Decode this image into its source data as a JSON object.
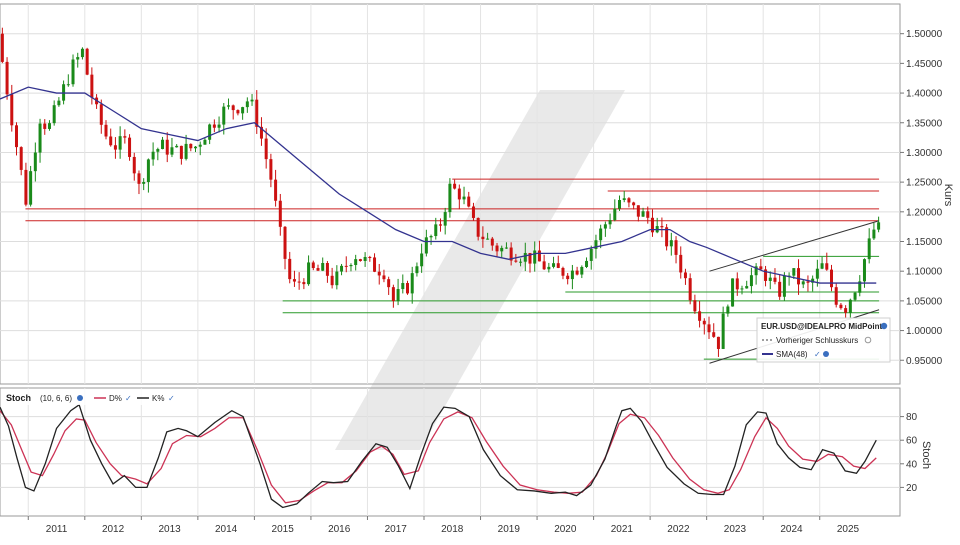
{
  "chart_data": [
    {
      "type": "candlestick",
      "instrument": "EUR.USD@IDEALPRO MidPoint",
      "ylabel": "Kurs",
      "ylim": [
        0.91,
        1.55
      ],
      "y_ticks": [
        "1.50000",
        "1.45000",
        "1.40000",
        "1.35000",
        "1.30000",
        "1.25000",
        "1.20000",
        "1.15000",
        "1.10000",
        "1.05000",
        "1.00000",
        "0.95000"
      ],
      "x_ticks": [
        "2011",
        "2012",
        "2013",
        "2014",
        "2015",
        "2016",
        "2017",
        "2018",
        "2019",
        "2020",
        "2021",
        "2022",
        "2023",
        "2024",
        "2025"
      ],
      "legend": {
        "title": "EUR.USD@IDEALPRO MidPoint",
        "prev_close": "Vorheriger Schlusskurs",
        "sma": "SMA(48)"
      },
      "colors": {
        "up": "#1a8a1a",
        "down": "#cc1111",
        "sma": "#33338f"
      },
      "price_path": [
        [
          2010.0,
          1.5
        ],
        [
          2010.3,
          1.33
        ],
        [
          2010.5,
          1.22
        ],
        [
          2010.75,
          1.36
        ],
        [
          2010.9,
          1.34
        ],
        [
          2011.3,
          1.44
        ],
        [
          2011.5,
          1.47
        ],
        [
          2011.7,
          1.38
        ],
        [
          2011.9,
          1.33
        ],
        [
          2012.1,
          1.31
        ],
        [
          2012.3,
          1.32
        ],
        [
          2012.5,
          1.24
        ],
        [
          2012.7,
          1.3
        ],
        [
          2012.9,
          1.31
        ],
        [
          2013.2,
          1.3
        ],
        [
          2013.5,
          1.31
        ],
        [
          2013.8,
          1.35
        ],
        [
          2014.0,
          1.37
        ],
        [
          2014.3,
          1.38
        ],
        [
          2014.45,
          1.39
        ],
        [
          2014.6,
          1.35
        ],
        [
          2014.85,
          1.25
        ],
        [
          2015.0,
          1.16
        ],
        [
          2015.2,
          1.07
        ],
        [
          2015.5,
          1.1
        ],
        [
          2015.8,
          1.1
        ],
        [
          2015.95,
          1.08
        ],
        [
          2016.3,
          1.13
        ],
        [
          2016.6,
          1.11
        ],
        [
          2016.85,
          1.1
        ],
        [
          2017.0,
          1.05
        ],
        [
          2017.3,
          1.08
        ],
        [
          2017.5,
          1.14
        ],
        [
          2017.8,
          1.17
        ],
        [
          2018.0,
          1.24
        ],
        [
          2018.2,
          1.23
        ],
        [
          2018.45,
          1.17
        ],
        [
          2018.8,
          1.14
        ],
        [
          2019.2,
          1.13
        ],
        [
          2019.5,
          1.12
        ],
        [
          2019.8,
          1.1
        ],
        [
          2020.1,
          1.1
        ],
        [
          2020.2,
          1.1
        ],
        [
          2020.5,
          1.14
        ],
        [
          2020.75,
          1.18
        ],
        [
          2021.0,
          1.22
        ],
        [
          2021.3,
          1.2
        ],
        [
          2021.5,
          1.19
        ],
        [
          2021.75,
          1.16
        ],
        [
          2022.0,
          1.13
        ],
        [
          2022.3,
          1.05
        ],
        [
          2022.55,
          1.01
        ],
        [
          2022.75,
          0.98
        ],
        [
          2022.95,
          1.07
        ],
        [
          2023.3,
          1.09
        ],
        [
          2023.55,
          1.1
        ],
        [
          2023.8,
          1.06
        ],
        [
          2024.0,
          1.1
        ],
        [
          2024.3,
          1.07
        ],
        [
          2024.6,
          1.11
        ],
        [
          2024.85,
          1.05
        ],
        [
          2025.0,
          1.04
        ],
        [
          2025.2,
          1.08
        ],
        [
          2025.4,
          1.14
        ],
        [
          2025.5,
          1.17
        ]
      ],
      "sma_48": [
        [
          2010.0,
          1.39
        ],
        [
          2010.5,
          1.41
        ],
        [
          2011.0,
          1.4
        ],
        [
          2011.5,
          1.4
        ],
        [
          2012.0,
          1.37
        ],
        [
          2012.5,
          1.34
        ],
        [
          2013.0,
          1.33
        ],
        [
          2013.5,
          1.32
        ],
        [
          2014.0,
          1.34
        ],
        [
          2014.5,
          1.35
        ],
        [
          2015.0,
          1.31
        ],
        [
          2015.5,
          1.27
        ],
        [
          2016.0,
          1.23
        ],
        [
          2016.5,
          1.2
        ],
        [
          2017.0,
          1.17
        ],
        [
          2017.5,
          1.15
        ],
        [
          2018.0,
          1.15
        ],
        [
          2018.5,
          1.13
        ],
        [
          2019.0,
          1.12
        ],
        [
          2019.5,
          1.13
        ],
        [
          2020.0,
          1.13
        ],
        [
          2020.5,
          1.14
        ],
        [
          2021.0,
          1.15
        ],
        [
          2021.5,
          1.17
        ],
        [
          2021.85,
          1.17
        ],
        [
          2022.2,
          1.15
        ],
        [
          2022.5,
          1.14
        ],
        [
          2023.0,
          1.12
        ],
        [
          2023.5,
          1.1
        ],
        [
          2024.0,
          1.09
        ],
        [
          2024.5,
          1.08
        ],
        [
          2025.0,
          1.08
        ],
        [
          2025.5,
          1.08
        ]
      ],
      "resistance_levels": [
        {
          "from": 2018.0,
          "to": 2025.55,
          "value": 1.255
        },
        {
          "from": 2020.75,
          "to": 2025.55,
          "value": 1.235
        },
        {
          "from": 2010.45,
          "to": 2025.55,
          "value": 1.205
        },
        {
          "from": 2010.45,
          "to": 2025.55,
          "value": 1.185
        }
      ],
      "support_levels": [
        {
          "from": 2023.5,
          "to": 2025.55,
          "value": 1.125
        },
        {
          "from": 2020.0,
          "to": 2025.55,
          "value": 1.065
        },
        {
          "from": 2015.0,
          "to": 2025.55,
          "value": 1.05
        },
        {
          "from": 2015.0,
          "to": 2025.55,
          "value": 1.03
        },
        {
          "from": 2022.45,
          "to": 2025.55,
          "value": 0.952
        }
      ],
      "trend_lines": [
        {
          "from": [
            2022.55,
            1.1
          ],
          "to": [
            2025.55,
            1.185
          ]
        },
        {
          "from": [
            2022.55,
            0.945
          ],
          "to": [
            2025.55,
            1.035
          ]
        }
      ]
    },
    {
      "type": "line",
      "indicator": "Stoch",
      "params": "(10, 6, 6)",
      "series_names": [
        "D%",
        "K%"
      ],
      "ylabel": "Stoch",
      "ylim": [
        0,
        100
      ],
      "y_ticks": [
        "80",
        "60",
        "40",
        "20"
      ],
      "colors": {
        "D%": "#cc3355",
        "K%": "#222222"
      },
      "K": [
        [
          2010.0,
          88
        ],
        [
          2010.15,
          72
        ],
        [
          2010.3,
          45
        ],
        [
          2010.45,
          20
        ],
        [
          2010.6,
          17
        ],
        [
          2010.8,
          40
        ],
        [
          2011.0,
          70
        ],
        [
          2011.25,
          85
        ],
        [
          2011.4,
          90
        ],
        [
          2011.6,
          60
        ],
        [
          2011.8,
          40
        ],
        [
          2012.0,
          23
        ],
        [
          2012.2,
          30
        ],
        [
          2012.4,
          20
        ],
        [
          2012.6,
          20
        ],
        [
          2012.8,
          45
        ],
        [
          2012.95,
          67
        ],
        [
          2013.15,
          70
        ],
        [
          2013.3,
          68
        ],
        [
          2013.5,
          63
        ],
        [
          2013.8,
          75
        ],
        [
          2014.1,
          85
        ],
        [
          2014.3,
          80
        ],
        [
          2014.6,
          40
        ],
        [
          2014.8,
          10
        ],
        [
          2015.0,
          3
        ],
        [
          2015.25,
          6
        ],
        [
          2015.45,
          15
        ],
        [
          2015.7,
          25
        ],
        [
          2015.9,
          24
        ],
        [
          2016.15,
          25
        ],
        [
          2016.4,
          42
        ],
        [
          2016.65,
          57
        ],
        [
          2016.85,
          54
        ],
        [
          2017.05,
          38
        ],
        [
          2017.25,
          19
        ],
        [
          2017.45,
          48
        ],
        [
          2017.65,
          74
        ],
        [
          2017.85,
          88
        ],
        [
          2018.05,
          87
        ],
        [
          2018.3,
          80
        ],
        [
          2018.55,
          52
        ],
        [
          2018.85,
          30
        ],
        [
          2019.15,
          18
        ],
        [
          2019.45,
          17
        ],
        [
          2019.75,
          15
        ],
        [
          2020.0,
          16
        ],
        [
          2020.2,
          13
        ],
        [
          2020.45,
          22
        ],
        [
          2020.7,
          44
        ],
        [
          2020.9,
          72
        ],
        [
          2021.0,
          85
        ],
        [
          2021.15,
          87
        ],
        [
          2021.35,
          76
        ],
        [
          2021.55,
          58
        ],
        [
          2021.8,
          37
        ],
        [
          2022.1,
          23
        ],
        [
          2022.35,
          15
        ],
        [
          2022.6,
          14
        ],
        [
          2022.8,
          14
        ],
        [
          2023.0,
          38
        ],
        [
          2023.2,
          73
        ],
        [
          2023.4,
          84
        ],
        [
          2023.55,
          83
        ],
        [
          2023.75,
          57
        ],
        [
          2023.95,
          45
        ],
        [
          2024.15,
          37
        ],
        [
          2024.35,
          35
        ],
        [
          2024.55,
          52
        ],
        [
          2024.75,
          49
        ],
        [
          2024.95,
          34
        ],
        [
          2025.15,
          32
        ],
        [
          2025.3,
          42
        ],
        [
          2025.5,
          60
        ]
      ],
      "D": [
        [
          2010.0,
          85
        ],
        [
          2010.2,
          73
        ],
        [
          2010.4,
          50
        ],
        [
          2010.55,
          33
        ],
        [
          2010.75,
          30
        ],
        [
          2010.95,
          48
        ],
        [
          2011.15,
          68
        ],
        [
          2011.35,
          78
        ],
        [
          2011.5,
          77
        ],
        [
          2011.7,
          58
        ],
        [
          2011.95,
          40
        ],
        [
          2012.15,
          30
        ],
        [
          2012.4,
          27
        ],
        [
          2012.6,
          23
        ],
        [
          2012.85,
          36
        ],
        [
          2013.05,
          57
        ],
        [
          2013.3,
          64
        ],
        [
          2013.55,
          63
        ],
        [
          2013.8,
          70
        ],
        [
          2014.05,
          79
        ],
        [
          2014.3,
          79
        ],
        [
          2014.55,
          52
        ],
        [
          2014.8,
          22
        ],
        [
          2015.05,
          7
        ],
        [
          2015.3,
          9
        ],
        [
          2015.55,
          17
        ],
        [
          2015.8,
          24
        ],
        [
          2016.05,
          24
        ],
        [
          2016.3,
          34
        ],
        [
          2016.55,
          50
        ],
        [
          2016.75,
          55
        ],
        [
          2016.95,
          48
        ],
        [
          2017.15,
          31
        ],
        [
          2017.4,
          34
        ],
        [
          2017.6,
          58
        ],
        [
          2017.85,
          78
        ],
        [
          2018.1,
          84
        ],
        [
          2018.35,
          79
        ],
        [
          2018.6,
          59
        ],
        [
          2018.9,
          38
        ],
        [
          2019.2,
          22
        ],
        [
          2019.5,
          18
        ],
        [
          2019.8,
          16
        ],
        [
          2020.05,
          15
        ],
        [
          2020.3,
          16
        ],
        [
          2020.55,
          30
        ],
        [
          2020.75,
          50
        ],
        [
          2020.95,
          74
        ],
        [
          2021.15,
          82
        ],
        [
          2021.4,
          79
        ],
        [
          2021.65,
          64
        ],
        [
          2021.9,
          45
        ],
        [
          2022.2,
          27
        ],
        [
          2022.45,
          18
        ],
        [
          2022.7,
          15
        ],
        [
          2022.9,
          18
        ],
        [
          2023.1,
          35
        ],
        [
          2023.35,
          63
        ],
        [
          2023.55,
          79
        ],
        [
          2023.75,
          70
        ],
        [
          2023.95,
          55
        ],
        [
          2024.2,
          44
        ],
        [
          2024.45,
          42
        ],
        [
          2024.65,
          48
        ],
        [
          2024.9,
          46
        ],
        [
          2025.1,
          38
        ],
        [
          2025.3,
          36
        ],
        [
          2025.5,
          45
        ]
      ]
    }
  ]
}
